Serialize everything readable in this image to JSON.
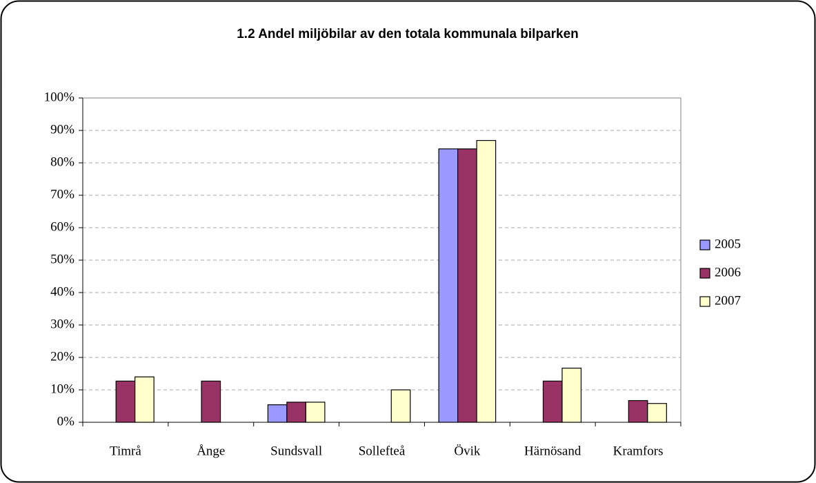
{
  "chart_data": {
    "type": "bar",
    "title": "1.2 Andel miljöbilar av den totala kommunala bilparken",
    "categories": [
      "Timrå",
      "Ånge",
      "Sundsvall",
      "Sollefteå",
      "Övik",
      "Härnösand",
      "Kramfors"
    ],
    "series": [
      {
        "name": "2005",
        "color": "#9999ff",
        "values": [
          null,
          null,
          5.4,
          null,
          84.3,
          null,
          null
        ]
      },
      {
        "name": "2006",
        "color": "#993366",
        "values": [
          12.7,
          12.7,
          6.2,
          null,
          84.3,
          12.7,
          6.7
        ]
      },
      {
        "name": "2007",
        "color": "#ffffcc",
        "values": [
          14,
          null,
          6.2,
          10,
          86.9,
          16.7,
          5.8
        ]
      }
    ],
    "ylim": [
      0,
      100
    ],
    "yticks": [
      {
        "value": 0,
        "label": "0%"
      },
      {
        "value": 10,
        "label": "10%"
      },
      {
        "value": 20,
        "label": "20%"
      },
      {
        "value": 30,
        "label": "30%"
      },
      {
        "value": 40,
        "label": "40%"
      },
      {
        "value": 50,
        "label": "50%"
      },
      {
        "value": 60,
        "label": "60%"
      },
      {
        "value": 70,
        "label": "70%"
      },
      {
        "value": 80,
        "label": "80%"
      },
      {
        "value": 90,
        "label": "90%"
      },
      {
        "value": 100,
        "label": "100%"
      }
    ],
    "grid": true,
    "legend": "right"
  }
}
